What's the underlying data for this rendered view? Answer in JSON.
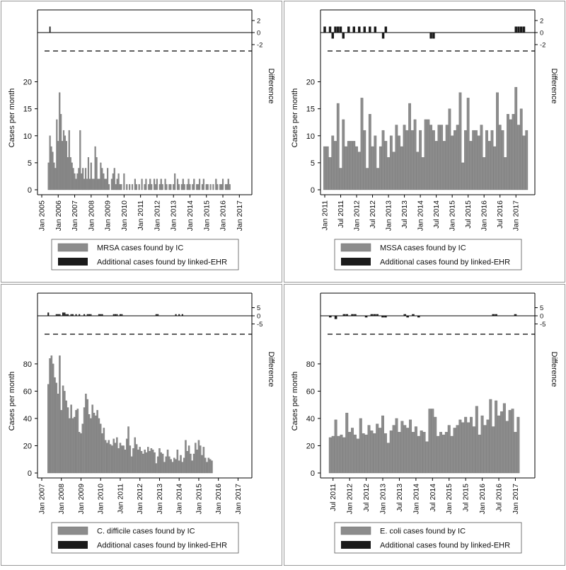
{
  "chart_data": [
    {
      "type": "bar",
      "panel": "top-left",
      "ylabel": "Cases per month",
      "y2label": "Difference",
      "ylim": [
        0,
        24
      ],
      "yticks": [
        0,
        5,
        10,
        15,
        20
      ],
      "diff_ylim": [
        -3,
        3
      ],
      "diff_yticks": [
        2,
        0,
        -2
      ],
      "x_start": "2005-01",
      "x_end": "2017-06",
      "xticks": [
        "Jan 2005",
        "Jan 2006",
        "Jan 2007",
        "Jan 2008",
        "Jan 2009",
        "Jan 2010",
        "Jan 2011",
        "Jan 2012",
        "Jan 2013",
        "Jan 2014",
        "Jan 2015",
        "Jan 2016",
        "Jan 2017"
      ],
      "legend": [
        "MRSA cases found by IC",
        "Additional cases found by linked-EHR"
      ],
      "series": [
        {
          "name": "MRSA cases found by IC",
          "start": "2005-06",
          "values": [
            5,
            10,
            8,
            7,
            5,
            4,
            13,
            9,
            18,
            14,
            9,
            11,
            10,
            9,
            6,
            11,
            6,
            5,
            4,
            3,
            2,
            3,
            4,
            11,
            3,
            4,
            2,
            4,
            2,
            6,
            2,
            5,
            2,
            2,
            8,
            6,
            2,
            2,
            5,
            4,
            3,
            2,
            2,
            4,
            1,
            0,
            2,
            3,
            4,
            1,
            2,
            3,
            1,
            1,
            0,
            3,
            0,
            1,
            0,
            1,
            0,
            1,
            0,
            2,
            1,
            0,
            1,
            0,
            2,
            0,
            1,
            2,
            0,
            1,
            2,
            1,
            0,
            2,
            1,
            2,
            0,
            1,
            2,
            1,
            0,
            2,
            1,
            0,
            1,
            1,
            0,
            1,
            3,
            0,
            2,
            1,
            0,
            1,
            2,
            1,
            0,
            1,
            2,
            1,
            0,
            1,
            2,
            0,
            1,
            1,
            2,
            0,
            1,
            2,
            0,
            1,
            1,
            0,
            1,
            0,
            1,
            0,
            2,
            1,
            0,
            1,
            1,
            2,
            0,
            1,
            1,
            2,
            1
          ]
        },
        {
          "name": "Additional cases found by linked-EHR",
          "start": "2005-06",
          "values": [
            0,
            1,
            0,
            0,
            0,
            0,
            0,
            0,
            0,
            0,
            0,
            0,
            0,
            0,
            0,
            0,
            0,
            0,
            0,
            0,
            0,
            0,
            0,
            0,
            0,
            0,
            0,
            0,
            0,
            0,
            0,
            0,
            0,
            0,
            0,
            0,
            0,
            0,
            0,
            0,
            0,
            0,
            0,
            0,
            0,
            0,
            0,
            0,
            0,
            0,
            0,
            0,
            0,
            0,
            0,
            0,
            0,
            0,
            0,
            0,
            0,
            0,
            0,
            0,
            0,
            0,
            0,
            0,
            0,
            0,
            0,
            0,
            0,
            0,
            0,
            0,
            0,
            0,
            0,
            0,
            0,
            0,
            0,
            0,
            0,
            0,
            0,
            0,
            0,
            0,
            0,
            0,
            0,
            0,
            0,
            0,
            0,
            0,
            0,
            0,
            0,
            0,
            0,
            0,
            0,
            0,
            0,
            0,
            0,
            0,
            0,
            0,
            0,
            0,
            0,
            0,
            0,
            0,
            0,
            0,
            0,
            0,
            0,
            0,
            0,
            0,
            0,
            0,
            0,
            0,
            0,
            0,
            0,
            0
          ]
        }
      ]
    },
    {
      "type": "bar",
      "panel": "top-right",
      "ylabel": "Cases per month",
      "y2label": "Difference",
      "ylim": [
        0,
        24
      ],
      "yticks": [
        0,
        5,
        10,
        15,
        20
      ],
      "diff_ylim": [
        -3,
        3
      ],
      "diff_yticks": [
        2,
        0,
        -2
      ],
      "x_start": "2011-01",
      "x_end": "2017-06",
      "xticks": [
        "Jan 2011",
        "Jul 2011",
        "Jan 2012",
        "Jul 2012",
        "Jan 2013",
        "Jul 2013",
        "Jan 2014",
        "Jul 2014",
        "Jan 2015",
        "Jul 2015",
        "Jan 2016",
        "Jul 2016",
        "Jan 2017"
      ],
      "legend": [
        "MSSA cases found by IC",
        "Additional cases found by linked-EHR"
      ],
      "series": [
        {
          "name": "MSSA cases found by IC",
          "start": "2011-01",
          "values": [
            8,
            8,
            6,
            10,
            9,
            16,
            4,
            13,
            8,
            9,
            9,
            9,
            8,
            7,
            17,
            11,
            4,
            14,
            8,
            10,
            4,
            8,
            11,
            9,
            6,
            10,
            7,
            12,
            10,
            8,
            12,
            11,
            16,
            11,
            13,
            7,
            11,
            6,
            13,
            13,
            12,
            11,
            9,
            12,
            12,
            9,
            12,
            15,
            10,
            11,
            12,
            18,
            5,
            11,
            17,
            9,
            11,
            11,
            10,
            12,
            6,
            11,
            9,
            11,
            8,
            18,
            12,
            11,
            6,
            14,
            13,
            14,
            19,
            12,
            15,
            10,
            11
          ]
        },
        {
          "name": "Additional cases found by linked-EHR",
          "start": "2011-01",
          "values": [
            1,
            0,
            1,
            -1,
            1,
            1,
            1,
            -1,
            0,
            1,
            0,
            1,
            0,
            1,
            0,
            1,
            0,
            1,
            0,
            1,
            0,
            0,
            -1,
            1,
            0,
            0,
            0,
            0,
            0,
            0,
            0,
            0,
            0,
            0,
            0,
            0,
            0,
            0,
            0,
            0,
            -1,
            -1,
            0,
            0,
            0,
            0,
            0,
            0,
            0,
            0,
            0,
            0,
            0,
            0,
            0,
            0,
            0,
            0,
            0,
            0,
            0,
            0,
            0,
            0,
            0,
            0,
            0,
            0,
            0,
            0,
            0,
            0,
            1,
            1,
            1,
            1
          ]
        }
      ]
    },
    {
      "type": "bar",
      "panel": "bottom-left",
      "ylabel": "Cases per month",
      "y2label": "Difference",
      "ylim": [
        0,
        95
      ],
      "yticks": [
        0,
        20,
        40,
        60,
        80
      ],
      "diff_ylim": [
        -7,
        7
      ],
      "diff_yticks": [
        5,
        0,
        -5
      ],
      "x_start": "2007-01",
      "x_end": "2017-06",
      "xticks": [
        "Jan 2007",
        "Jan 2008",
        "Jan 2009",
        "Jan 2010",
        "Jan 2011",
        "Jan 2012",
        "Jan 2013",
        "Jan 2014",
        "Jan 2015",
        "Jan 2016",
        "Jan 2017"
      ],
      "legend": [
        "C. difficile cases found by IC",
        "Additional cases found by linked-EHR"
      ],
      "series": [
        {
          "name": "C. difficile cases found by IC",
          "start": "2007-05",
          "values": [
            65,
            84,
            86,
            80,
            70,
            66,
            58,
            86,
            46,
            64,
            60,
            53,
            48,
            40,
            50,
            40,
            41,
            46,
            47,
            30,
            29,
            36,
            48,
            58,
            54,
            43,
            40,
            50,
            44,
            42,
            46,
            40,
            36,
            29,
            33,
            24,
            22,
            24,
            21,
            20,
            25,
            22,
            26,
            18,
            22,
            20,
            20,
            17,
            25,
            34,
            20,
            12,
            18,
            26,
            21,
            17,
            19,
            16,
            14,
            17,
            15,
            19,
            16,
            18,
            17,
            15,
            7,
            12,
            18,
            15,
            14,
            8,
            12,
            17,
            12,
            10,
            8,
            11,
            10,
            17,
            9,
            13,
            8,
            11,
            24,
            16,
            20,
            14,
            9,
            14,
            22,
            17,
            24,
            20,
            13,
            19,
            11,
            8,
            11,
            10,
            9
          ]
        },
        {
          "name": "Additional cases found by linked-EHR",
          "start": "2007-05",
          "values": [
            2,
            0,
            0,
            0,
            0,
            1,
            1,
            1,
            0,
            2,
            2,
            1,
            1,
            0,
            1,
            1,
            0,
            1,
            0,
            1,
            0,
            0,
            1,
            0,
            1,
            1,
            1,
            0,
            0,
            0,
            0,
            1,
            1,
            1,
            0,
            0,
            0,
            0,
            0,
            0,
            1,
            1,
            1,
            0,
            1,
            1,
            0,
            0,
            0,
            0,
            0,
            0,
            0,
            0,
            0,
            0,
            0,
            0,
            0,
            0,
            0,
            0,
            0,
            0,
            0,
            0,
            1,
            1,
            0,
            0,
            0,
            0,
            0,
            0,
            0,
            0,
            0,
            0,
            1,
            0,
            1,
            0,
            1,
            0,
            0,
            0,
            0,
            0,
            0,
            0,
            0,
            0,
            0,
            0,
            0,
            0,
            0,
            0,
            0,
            0,
            0
          ]
        }
      ]
    },
    {
      "type": "bar",
      "panel": "bottom-right",
      "ylabel": "Cases per month",
      "y2label": "Difference",
      "ylim": [
        0,
        95
      ],
      "yticks": [
        0,
        20,
        40,
        60,
        80
      ],
      "diff_ylim": [
        -7,
        7
      ],
      "diff_yticks": [
        5,
        0,
        -5
      ],
      "x_start": "2011-04",
      "x_end": "2017-06",
      "xticks": [
        "Jul 2011",
        "Jan 2012",
        "Jul 2012",
        "Jan 2013",
        "Jul 2013",
        "Jan 2014",
        "Jul 2014",
        "Jan 2015",
        "Jul 2015",
        "Jan 2016",
        "Jul 2016",
        "Jan 2017"
      ],
      "legend": [
        "E. coli cases found by IC",
        "Additional cases found by linked-EHR"
      ],
      "series": [
        {
          "name": "E. coli cases found by IC",
          "start": "2011-06",
          "values": [
            26,
            27,
            39,
            27,
            28,
            26,
            44,
            30,
            33,
            28,
            25,
            40,
            29,
            28,
            35,
            31,
            29,
            36,
            33,
            42,
            29,
            22,
            31,
            35,
            40,
            30,
            38,
            35,
            33,
            39,
            30,
            34,
            27,
            31,
            30,
            23,
            47,
            47,
            41,
            27,
            30,
            28,
            30,
            35,
            27,
            33,
            35,
            39,
            37,
            41,
            37,
            41,
            34,
            49,
            28,
            42,
            35,
            39,
            54,
            34,
            53,
            42,
            45,
            51,
            38,
            46,
            47,
            30,
            41
          ]
        },
        {
          "name": "Additional cases found by linked-EHR",
          "start": "2011-06",
          "values": [
            -1,
            0,
            -2,
            0,
            0,
            1,
            1,
            0,
            1,
            1,
            0,
            0,
            0,
            -1,
            0,
            1,
            1,
            1,
            0,
            -1,
            -1,
            0,
            0,
            0,
            0,
            0,
            0,
            1,
            -1,
            0,
            1,
            0,
            -1,
            0,
            0,
            0,
            0,
            0,
            0,
            0,
            0,
            0,
            0,
            0,
            0,
            0,
            0,
            0,
            0,
            0,
            0,
            0,
            0,
            0,
            0,
            0,
            0,
            0,
            0,
            1,
            1,
            0,
            0,
            0,
            0,
            0,
            0,
            1,
            0
          ]
        }
      ]
    }
  ]
}
